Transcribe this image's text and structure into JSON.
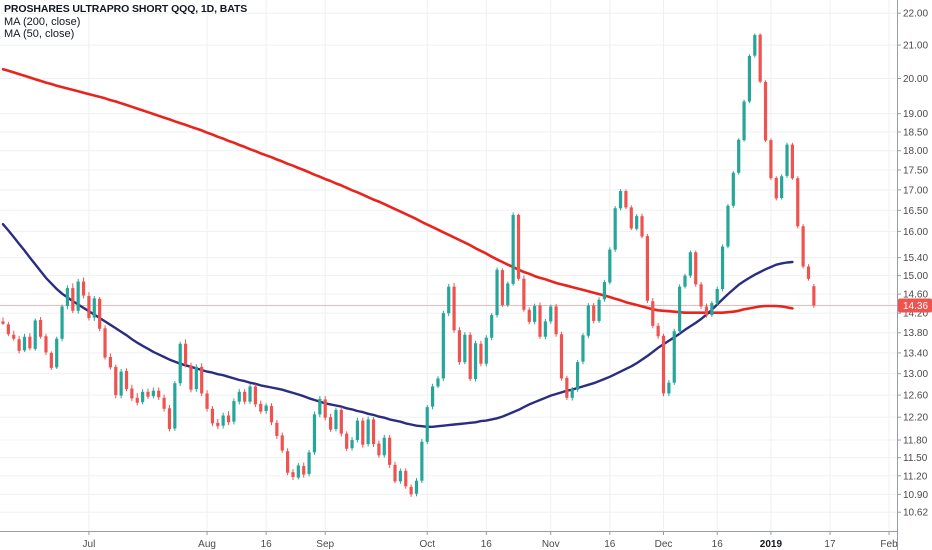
{
  "header": {
    "title": "PROSHARES ULTRAPRO SHORT QQQ, 1D, BATS",
    "indicators": [
      "MA (200, close)",
      "MA (50, close)"
    ]
  },
  "colors": {
    "up": "#26a69a",
    "down": "#ef5350",
    "ma200": "#e8241c",
    "ma50": "#2b2d82",
    "last_price_line": "#f5b6b6",
    "price_tag_bg": "#ef5350",
    "grid": "#eef0f3",
    "axis_line": "#9a9ea6"
  },
  "chart_data": {
    "type": "candlestick",
    "title": "PROSHARES ULTRAPRO SHORT QQQ, 1D, BATS",
    "y_scale": "log",
    "ylim": [
      10.5,
      22.2
    ],
    "y_ticks": [
      10.62,
      10.9,
      11.2,
      11.5,
      11.8,
      12.2,
      12.6,
      13.0,
      13.4,
      13.8,
      14.2,
      14.6,
      15.0,
      15.4,
      16.0,
      16.5,
      17.0,
      17.5,
      18.0,
      18.5,
      19.0,
      20.0,
      21.0,
      22.0
    ],
    "y_tick_labels": [
      "10.62",
      "10.90",
      "11.20",
      "11.50",
      "11.80",
      "12.20",
      "12.60",
      "13.00",
      "13.40",
      "13.80",
      "14.20",
      "14.60",
      "15.00",
      "15.40",
      "16.00",
      "16.50",
      "17.00",
      "17.50",
      "18.00",
      "18.50",
      "19.00",
      "20.00",
      "21.00",
      "22.00"
    ],
    "x_tick_labels": [
      {
        "label": "Jul",
        "bar": 16,
        "bold": false
      },
      {
        "label": "Aug",
        "bar": 38,
        "bold": false
      },
      {
        "label": "16",
        "bar": 49,
        "bold": false
      },
      {
        "label": "Sep",
        "bar": 60,
        "bold": false
      },
      {
        "label": "Oct",
        "bar": 79,
        "bold": false
      },
      {
        "label": "16",
        "bar": 90,
        "bold": false
      },
      {
        "label": "Nov",
        "bar": 102,
        "bold": false
      },
      {
        "label": "16",
        "bar": 113,
        "bold": false
      },
      {
        "label": "Dec",
        "bar": 123,
        "bold": false
      },
      {
        "label": "16",
        "bar": 133,
        "bold": false
      },
      {
        "label": "2019",
        "bar": 143,
        "bold": true
      },
      {
        "label": "17",
        "bar": 154,
        "bold": false
      },
      {
        "label": "Feb",
        "bar": 165,
        "bold": false
      }
    ],
    "bars_visible": 148,
    "bars_total": 171,
    "last_price": 14.36,
    "last_price_label": "14.36",
    "ohlc": [
      [
        14.03,
        14.11,
        13.96,
        13.98
      ],
      [
        13.97,
        14.02,
        13.73,
        13.77
      ],
      [
        13.76,
        13.84,
        13.64,
        13.68
      ],
      [
        13.67,
        13.74,
        13.39,
        13.44
      ],
      [
        13.45,
        13.78,
        13.42,
        13.72
      ],
      [
        13.72,
        13.79,
        13.45,
        13.49
      ],
      [
        13.48,
        14.09,
        13.44,
        14.05
      ],
      [
        14.06,
        14.12,
        13.68,
        13.72
      ],
      [
        13.73,
        13.78,
        13.36,
        13.41
      ],
      [
        13.4,
        13.43,
        13.07,
        13.11
      ],
      [
        13.12,
        13.72,
        13.09,
        13.68
      ],
      [
        13.68,
        14.38,
        13.63,
        14.34
      ],
      [
        14.35,
        14.79,
        14.28,
        14.73
      ],
      [
        14.73,
        14.83,
        14.2,
        14.25
      ],
      [
        14.25,
        14.93,
        14.19,
        14.87
      ],
      [
        14.87,
        14.96,
        14.51,
        14.57
      ],
      [
        14.56,
        14.64,
        14.05,
        14.1
      ],
      [
        14.11,
        14.56,
        14.04,
        14.51
      ],
      [
        14.5,
        14.54,
        13.83,
        13.88
      ],
      [
        13.89,
        13.95,
        13.27,
        13.31
      ],
      [
        13.32,
        13.39,
        13.08,
        13.12
      ],
      [
        13.13,
        13.17,
        12.54,
        12.6
      ],
      [
        12.59,
        13.09,
        12.54,
        13.04
      ],
      [
        13.05,
        13.1,
        12.67,
        12.71
      ],
      [
        12.72,
        12.79,
        12.49,
        12.54
      ],
      [
        12.55,
        12.64,
        12.41,
        12.46
      ],
      [
        12.47,
        12.71,
        12.43,
        12.66
      ],
      [
        12.66,
        12.72,
        12.53,
        12.57
      ],
      [
        12.58,
        12.74,
        12.54,
        12.68
      ],
      [
        12.68,
        12.74,
        12.51,
        12.56
      ],
      [
        12.55,
        12.61,
        12.3,
        12.35
      ],
      [
        12.36,
        12.42,
        11.95,
        11.99
      ],
      [
        12.0,
        12.86,
        11.96,
        12.82
      ],
      [
        12.82,
        13.62,
        12.77,
        13.58
      ],
      [
        13.58,
        13.67,
        13.12,
        13.17
      ],
      [
        13.16,
        13.21,
        12.65,
        12.7
      ],
      [
        12.71,
        13.18,
        12.66,
        13.13
      ],
      [
        13.13,
        13.2,
        12.58,
        12.63
      ],
      [
        12.63,
        12.69,
        12.3,
        12.35
      ],
      [
        12.35,
        12.4,
        12.04,
        12.09
      ],
      [
        12.1,
        12.17,
        11.99,
        12.04
      ],
      [
        12.05,
        12.28,
        12.0,
        12.23
      ],
      [
        12.23,
        12.31,
        12.06,
        12.11
      ],
      [
        12.12,
        12.54,
        12.07,
        12.49
      ],
      [
        12.48,
        12.71,
        12.43,
        12.66
      ],
      [
        12.66,
        12.71,
        12.43,
        12.48
      ],
      [
        12.48,
        12.81,
        12.44,
        12.76
      ],
      [
        12.76,
        12.8,
        12.38,
        12.43
      ],
      [
        12.44,
        12.5,
        12.26,
        12.3
      ],
      [
        12.31,
        12.45,
        12.26,
        12.41
      ],
      [
        12.4,
        12.45,
        12.06,
        12.11
      ],
      [
        12.1,
        12.15,
        11.82,
        11.87
      ],
      [
        11.88,
        11.93,
        11.58,
        11.62
      ],
      [
        11.61,
        11.66,
        11.21,
        11.25
      ],
      [
        11.26,
        11.31,
        11.13,
        11.18
      ],
      [
        11.17,
        11.41,
        11.14,
        11.37
      ],
      [
        11.36,
        11.42,
        11.17,
        11.22
      ],
      [
        11.23,
        11.63,
        11.19,
        11.59
      ],
      [
        11.59,
        12.3,
        11.55,
        12.25
      ],
      [
        12.25,
        12.58,
        12.2,
        12.53
      ],
      [
        12.52,
        12.58,
        12.14,
        12.19
      ],
      [
        12.2,
        12.26,
        11.94,
        11.98
      ],
      [
        11.99,
        12.37,
        11.95,
        12.33
      ],
      [
        12.33,
        12.38,
        11.86,
        11.91
      ],
      [
        11.91,
        11.95,
        11.61,
        11.65
      ],
      [
        11.66,
        11.85,
        11.62,
        11.8
      ],
      [
        11.8,
        12.19,
        11.76,
        12.14
      ],
      [
        12.14,
        12.19,
        11.67,
        11.72
      ],
      [
        11.73,
        12.21,
        11.69,
        12.16
      ],
      [
        12.16,
        12.2,
        11.68,
        11.73
      ],
      [
        11.74,
        11.79,
        11.5,
        11.54
      ],
      [
        11.54,
        11.89,
        11.5,
        11.84
      ],
      [
        11.84,
        11.89,
        11.33,
        11.38
      ],
      [
        11.38,
        11.43,
        11.08,
        11.11
      ],
      [
        11.11,
        11.32,
        11.07,
        11.28
      ],
      [
        11.28,
        11.32,
        10.99,
        11.03
      ],
      [
        11.02,
        11.06,
        10.86,
        10.9
      ],
      [
        10.91,
        11.16,
        10.87,
        11.12
      ],
      [
        11.12,
        11.82,
        11.08,
        11.77
      ],
      [
        11.77,
        12.42,
        11.73,
        12.38
      ],
      [
        12.39,
        12.81,
        12.34,
        12.76
      ],
      [
        12.76,
        12.95,
        12.73,
        12.91
      ],
      [
        12.91,
        14.25,
        12.86,
        14.2
      ],
      [
        14.2,
        14.82,
        14.14,
        14.76
      ],
      [
        14.76,
        14.84,
        13.8,
        13.85
      ],
      [
        13.85,
        13.91,
        13.17,
        13.22
      ],
      [
        13.22,
        13.81,
        13.18,
        13.76
      ],
      [
        13.76,
        13.81,
        12.86,
        12.9
      ],
      [
        12.9,
        13.64,
        12.85,
        13.59
      ],
      [
        13.58,
        13.64,
        13.14,
        13.19
      ],
      [
        13.19,
        13.75,
        13.14,
        13.7
      ],
      [
        13.7,
        14.2,
        13.65,
        14.16
      ],
      [
        14.16,
        15.18,
        14.11,
        15.13
      ],
      [
        15.12,
        15.16,
        14.33,
        14.37
      ],
      [
        14.37,
        14.87,
        14.33,
        14.83
      ],
      [
        14.82,
        16.45,
        14.78,
        16.39
      ],
      [
        16.39,
        16.42,
        14.89,
        14.93
      ],
      [
        14.93,
        15.0,
        14.23,
        14.27
      ],
      [
        14.27,
        14.32,
        13.97,
        14.02
      ],
      [
        14.02,
        14.4,
        13.97,
        14.35
      ],
      [
        14.36,
        14.42,
        13.68,
        13.72
      ],
      [
        13.72,
        14.08,
        13.67,
        14.03
      ],
      [
        14.03,
        14.38,
        13.98,
        14.34
      ],
      [
        14.34,
        14.39,
        13.72,
        13.77
      ],
      [
        13.77,
        13.82,
        12.87,
        12.91
      ],
      [
        12.92,
        12.96,
        12.51,
        12.55
      ],
      [
        12.55,
        12.75,
        12.5,
        12.71
      ],
      [
        12.7,
        13.26,
        12.66,
        13.22
      ],
      [
        13.23,
        13.79,
        13.18,
        13.75
      ],
      [
        13.74,
        14.41,
        13.69,
        14.36
      ],
      [
        14.36,
        14.41,
        13.99,
        14.04
      ],
      [
        14.04,
        14.53,
        14.0,
        14.48
      ],
      [
        14.49,
        14.9,
        14.44,
        14.86
      ],
      [
        14.85,
        15.63,
        14.81,
        15.58
      ],
      [
        15.58,
        16.6,
        15.53,
        16.55
      ],
      [
        16.55,
        17.02,
        16.5,
        16.97
      ],
      [
        16.97,
        17.01,
        16.53,
        16.57
      ],
      [
        16.57,
        16.62,
        16.03,
        16.07
      ],
      [
        16.06,
        16.41,
        16.02,
        16.36
      ],
      [
        16.36,
        16.42,
        15.84,
        15.88
      ],
      [
        15.89,
        15.94,
        14.41,
        14.46
      ],
      [
        14.45,
        14.52,
        13.89,
        13.94
      ],
      [
        13.94,
        14.0,
        13.68,
        13.73
      ],
      [
        13.74,
        13.78,
        12.58,
        12.63
      ],
      [
        12.63,
        12.88,
        12.58,
        12.83
      ],
      [
        12.83,
        13.88,
        12.79,
        13.83
      ],
      [
        13.83,
        14.81,
        13.78,
        14.76
      ],
      [
        14.76,
        15.04,
        14.72,
        15.0
      ],
      [
        15.0,
        15.56,
        14.95,
        15.52
      ],
      [
        15.52,
        15.56,
        14.76,
        14.81
      ],
      [
        14.81,
        14.86,
        14.29,
        14.34
      ],
      [
        14.34,
        14.4,
        14.11,
        14.16
      ],
      [
        14.16,
        14.45,
        14.12,
        14.41
      ],
      [
        14.41,
        14.76,
        14.37,
        14.71
      ],
      [
        14.71,
        15.7,
        14.66,
        15.65
      ],
      [
        15.65,
        16.65,
        15.61,
        16.61
      ],
      [
        16.61,
        17.47,
        16.56,
        17.43
      ],
      [
        17.43,
        18.33,
        17.38,
        18.29
      ],
      [
        18.28,
        19.39,
        18.24,
        19.34
      ],
      [
        19.34,
        20.72,
        19.29,
        20.67
      ],
      [
        20.68,
        21.36,
        20.62,
        21.31
      ],
      [
        21.32,
        21.36,
        19.86,
        19.91
      ],
      [
        19.9,
        19.95,
        18.23,
        18.27
      ],
      [
        18.28,
        18.32,
        17.25,
        17.29
      ],
      [
        17.3,
        17.34,
        16.74,
        16.79
      ],
      [
        16.8,
        17.39,
        16.76,
        17.34
      ],
      [
        17.35,
        18.21,
        17.3,
        18.16
      ],
      [
        18.16,
        18.21,
        17.25,
        17.29
      ],
      [
        17.29,
        17.34,
        16.07,
        16.12
      ],
      [
        16.12,
        16.17,
        15.16,
        15.2
      ],
      [
        15.2,
        15.25,
        14.89,
        14.93
      ],
      [
        14.77,
        14.82,
        14.31,
        14.36
      ]
    ],
    "series": [
      {
        "name": "MA (200, close)",
        "values": [
          20.27,
          20.23,
          20.18,
          20.13,
          20.08,
          20.03,
          19.98,
          19.93,
          19.88,
          19.84,
          19.79,
          19.75,
          19.71,
          19.67,
          19.63,
          19.59,
          19.55,
          19.51,
          19.47,
          19.43,
          19.38,
          19.34,
          19.29,
          19.24,
          19.19,
          19.14,
          19.09,
          19.04,
          18.99,
          18.94,
          18.89,
          18.84,
          18.79,
          18.74,
          18.69,
          18.64,
          18.59,
          18.54,
          18.48,
          18.43,
          18.37,
          18.32,
          18.26,
          18.21,
          18.15,
          18.1,
          18.04,
          17.99,
          17.93,
          17.88,
          17.83,
          17.77,
          17.72,
          17.66,
          17.61,
          17.55,
          17.5,
          17.44,
          17.38,
          17.33,
          17.27,
          17.22,
          17.16,
          17.11,
          17.05,
          16.99,
          16.94,
          16.88,
          16.82,
          16.76,
          16.71,
          16.65,
          16.59,
          16.53,
          16.47,
          16.41,
          16.35,
          16.29,
          16.22,
          16.16,
          16.1,
          16.04,
          15.98,
          15.92,
          15.86,
          15.8,
          15.74,
          15.68,
          15.61,
          15.55,
          15.49,
          15.42,
          15.36,
          15.3,
          15.24,
          15.19,
          15.13,
          15.08,
          15.04,
          14.99,
          14.95,
          14.92,
          14.88,
          14.84,
          14.81,
          14.78,
          14.75,
          14.72,
          14.69,
          14.66,
          14.63,
          14.6,
          14.57,
          14.54,
          14.5,
          14.47,
          14.43,
          14.4,
          14.37,
          14.34,
          14.31,
          14.28,
          14.26,
          14.25,
          14.24,
          14.23,
          14.22,
          14.21,
          14.21,
          14.21,
          14.21,
          14.21,
          14.21,
          14.21,
          14.21,
          14.22,
          14.23,
          14.25,
          14.28,
          14.3,
          14.32,
          14.34,
          14.35,
          14.35,
          14.35,
          14.34,
          14.32,
          14.3
        ]
      },
      {
        "name": "MA (50, close)",
        "values": [
          16.17,
          16.02,
          15.87,
          15.71,
          15.56,
          15.4,
          15.25,
          15.1,
          14.95,
          14.83,
          14.71,
          14.61,
          14.53,
          14.45,
          14.38,
          14.31,
          14.24,
          14.17,
          14.1,
          14.03,
          13.96,
          13.89,
          13.82,
          13.75,
          13.67,
          13.6,
          13.54,
          13.48,
          13.42,
          13.37,
          13.32,
          13.27,
          13.23,
          13.19,
          13.16,
          13.13,
          13.1,
          13.07,
          13.04,
          13.02,
          12.99,
          12.97,
          12.94,
          12.91,
          12.88,
          12.86,
          12.83,
          12.81,
          12.78,
          12.76,
          12.74,
          12.72,
          12.7,
          12.67,
          12.64,
          12.61,
          12.58,
          12.54,
          12.51,
          12.48,
          12.45,
          12.43,
          12.41,
          12.39,
          12.36,
          12.34,
          12.31,
          12.29,
          12.26,
          12.24,
          12.21,
          12.19,
          12.16,
          12.14,
          12.12,
          12.09,
          12.07,
          12.05,
          12.04,
          12.03,
          12.03,
          12.04,
          12.05,
          12.06,
          12.07,
          12.08,
          12.09,
          12.1,
          12.11,
          12.13,
          12.14,
          12.16,
          12.18,
          12.21,
          12.25,
          12.29,
          12.33,
          12.38,
          12.43,
          12.47,
          12.51,
          12.55,
          12.59,
          12.62,
          12.65,
          12.68,
          12.7,
          12.73,
          12.76,
          12.79,
          12.82,
          12.86,
          12.9,
          12.94,
          12.99,
          13.04,
          13.09,
          13.14,
          13.2,
          13.27,
          13.34,
          13.42,
          13.5,
          13.57,
          13.64,
          13.71,
          13.78,
          13.86,
          13.93,
          14.0,
          14.08,
          14.17,
          14.27,
          14.38,
          14.49,
          14.6,
          14.7,
          14.8,
          14.88,
          14.95,
          15.02,
          15.08,
          15.14,
          15.19,
          15.24,
          15.27,
          15.29,
          15.3
        ]
      }
    ]
  }
}
